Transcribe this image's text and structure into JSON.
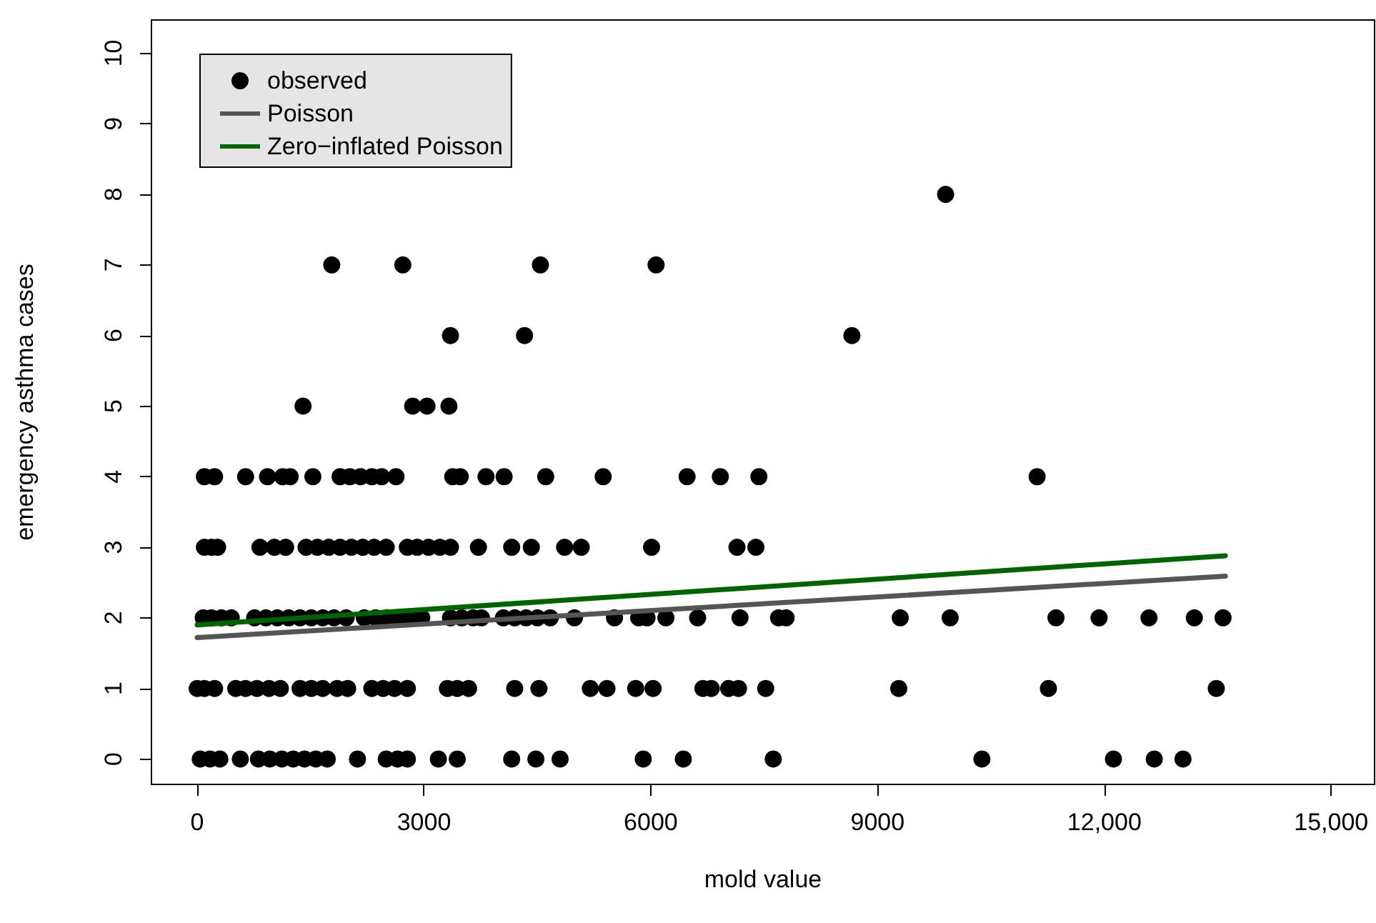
{
  "chart_data": {
    "type": "scatter",
    "xlabel": "mold value",
    "ylabel": "emergency asthma cases",
    "xlim": [
      -605,
      15574
    ],
    "ylim": [
      -0.36,
      10.47
    ],
    "xticks": [
      0,
      3000,
      6000,
      9000,
      {
        "value": 12000,
        "label": "12,000"
      },
      {
        "value": 15000,
        "label": "15,000"
      }
    ],
    "yticks": [
      0,
      1,
      2,
      3,
      4,
      5,
      6,
      7,
      8,
      9,
      10
    ],
    "grid": false,
    "legend": "top left",
    "marker": "circle",
    "line_style": "solid",
    "series": [
      {
        "name": "observed",
        "color": "#000000",
        "x": [
          9900,
          1780,
          2720,
          4540,
          6070,
          3350,
          4330,
          8660,
          1400,
          2850,
          3040,
          3330,
          95,
          230,
          640,
          930,
          1130,
          1230,
          1530,
          1890,
          2020,
          2160,
          2310,
          2440,
          2630,
          3380,
          3480,
          3820,
          4060,
          4610,
          5370,
          6480,
          6920,
          7430,
          11110,
          95,
          190,
          270,
          830,
          1020,
          1170,
          1440,
          1590,
          1740,
          1890,
          2040,
          2190,
          2340,
          2500,
          2780,
          2910,
          3060,
          3210,
          3350,
          3720,
          4160,
          4420,
          4860,
          5080,
          6010,
          7140,
          7390,
          80,
          190,
          320,
          450,
          760,
          910,
          1060,
          1210,
          1360,
          1510,
          1660,
          1810,
          1970,
          2210,
          2360,
          2510,
          2670,
          2820,
          2970,
          3350,
          3500,
          3650,
          3760,
          4050,
          4200,
          4350,
          4500,
          4670,
          4990,
          5520,
          5840,
          5950,
          6200,
          6620,
          7180,
          7690,
          7790,
          9300,
          9960,
          11360,
          11930,
          12590,
          13190,
          13570,
          0,
          95,
          230,
          510,
          640,
          790,
          950,
          1100,
          1360,
          1510,
          1660,
          1850,
          1990,
          2310,
          2460,
          2610,
          2780,
          3310,
          3440,
          3590,
          4200,
          4520,
          5200,
          5420,
          5800,
          6030,
          6690,
          6800,
          7030,
          7160,
          7520,
          9280,
          11260,
          13480,
          40,
          170,
          300,
          570,
          810,
          960,
          1120,
          1270,
          1420,
          1570,
          1720,
          2120,
          2500,
          2650,
          2780,
          3190,
          3440,
          4160,
          4480,
          4800,
          5900,
          6430,
          7620,
          10380,
          12120,
          12660,
          13040
        ],
        "values": [
          8,
          7,
          7,
          7,
          7,
          6,
          6,
          6,
          5,
          5,
          5,
          5,
          4,
          4,
          4,
          4,
          4,
          4,
          4,
          4,
          4,
          4,
          4,
          4,
          4,
          4,
          4,
          4,
          4,
          4,
          4,
          4,
          4,
          4,
          4,
          3,
          3,
          3,
          3,
          3,
          3,
          3,
          3,
          3,
          3,
          3,
          3,
          3,
          3,
          3,
          3,
          3,
          3,
          3,
          3,
          3,
          3,
          3,
          3,
          3,
          3,
          3,
          2,
          2,
          2,
          2,
          2,
          2,
          2,
          2,
          2,
          2,
          2,
          2,
          2,
          2,
          2,
          2,
          2,
          2,
          2,
          2,
          2,
          2,
          2,
          2,
          2,
          2,
          2,
          2,
          2,
          2,
          2,
          2,
          2,
          2,
          2,
          2,
          2,
          2,
          2,
          2,
          2,
          2,
          2,
          2,
          1,
          1,
          1,
          1,
          1,
          1,
          1,
          1,
          1,
          1,
          1,
          1,
          1,
          1,
          1,
          1,
          1,
          1,
          1,
          1,
          1,
          1,
          1,
          1,
          1,
          1,
          1,
          1,
          1,
          1,
          1,
          1,
          1,
          1,
          0,
          0,
          0,
          0,
          0,
          0,
          0,
          0,
          0,
          0,
          0,
          0,
          0,
          0,
          0,
          0,
          0,
          0,
          0,
          0,
          0,
          0,
          0,
          0,
          0,
          0,
          0
        ]
      },
      {
        "name": "Poisson",
        "type": "line",
        "color": "#555555",
        "marker": "none",
        "x": [
          0,
          13600
        ],
        "values": [
          1.72,
          2.59
        ]
      },
      {
        "name": "Zero−inflated Poisson",
        "type": "line",
        "color": "#006400",
        "marker": "none",
        "x": [
          0,
          13600
        ],
        "values": [
          1.9,
          2.88
        ]
      }
    ]
  }
}
